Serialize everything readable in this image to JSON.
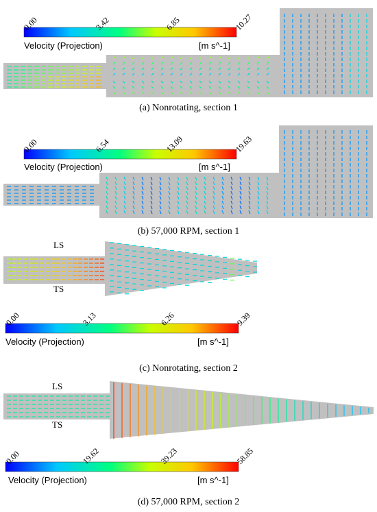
{
  "colorbar_gradient": [
    "#0000ff",
    "#00c8ff",
    "#00ff80",
    "#c8ff00",
    "#ffc800",
    "#ff0000"
  ],
  "geometry_color": "#c0c0c0",
  "panels": [
    {
      "caption": "(a) Nonrotating, section 1",
      "colorbar": {
        "label": "Velocity (Projection)",
        "unit": "[m s^-1]",
        "ticks": [
          "0.00",
          "3.42",
          "6.85",
          "10.27"
        ]
      },
      "flow_field": {
        "shape": "t-junction",
        "inlet_speed_level": "high",
        "max_value": 10.27
      }
    },
    {
      "caption": "(b) 57,000 RPM, section 1",
      "colorbar": {
        "label": "Velocity (Projection)",
        "unit": "[m s^-1]",
        "ticks": [
          "0.00",
          "6.54",
          "13.09",
          "19.63"
        ]
      },
      "flow_field": {
        "shape": "t-junction",
        "inlet_speed_level": "low",
        "max_value": 19.63
      }
    },
    {
      "caption": "(c) Nonrotating, section 2",
      "colorbar": {
        "label": "Velocity (Projection)",
        "unit": "[m s^-1]",
        "ticks": [
          "0.00",
          "3.13",
          "6.26",
          "9.39"
        ]
      },
      "flow_field": {
        "shape": "diffuser",
        "side_labels": [
          "LS",
          "TS"
        ],
        "max_value": 9.39
      }
    },
    {
      "caption": "(d) 57,000 RPM, section 2",
      "colorbar": {
        "label": "Velocity (Projection)",
        "unit": "[m s^-1]",
        "ticks": [
          "0.00",
          "19.62",
          "39.23",
          "58.85"
        ]
      },
      "flow_field": {
        "shape": "diffuser",
        "side_labels": [
          "LS",
          "TS"
        ],
        "max_value": 58.85
      }
    }
  ]
}
